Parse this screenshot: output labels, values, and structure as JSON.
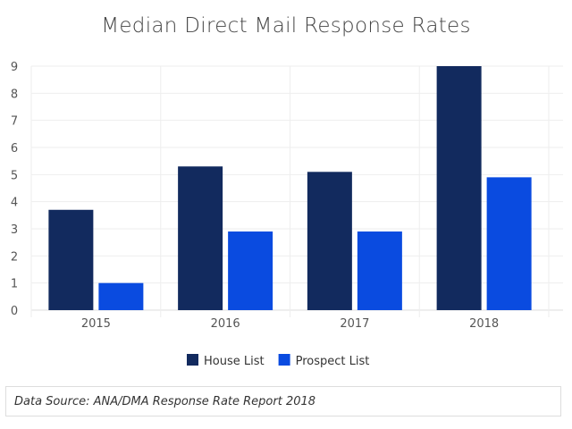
{
  "chart_data": {
    "type": "bar",
    "title": "Median Direct Mail Response Rates",
    "categories": [
      "2015",
      "2016",
      "2017",
      "2018"
    ],
    "series": [
      {
        "name": "House List",
        "color": "#122a5e",
        "values": [
          3.7,
          5.3,
          5.1,
          9.0
        ]
      },
      {
        "name": "Prospect List",
        "color": "#0a4be0",
        "values": [
          1.0,
          2.9,
          2.9,
          4.9
        ]
      }
    ],
    "xlabel": "",
    "ylabel": "",
    "ylim": [
      0,
      9
    ],
    "yticks": [
      "0",
      "1",
      "2",
      "3",
      "4",
      "5",
      "6",
      "7",
      "8",
      "9"
    ],
    "grid": true,
    "legend": "bottom"
  },
  "footer": {
    "source": "Data Source: ANA/DMA Response Rate Report 2018"
  }
}
